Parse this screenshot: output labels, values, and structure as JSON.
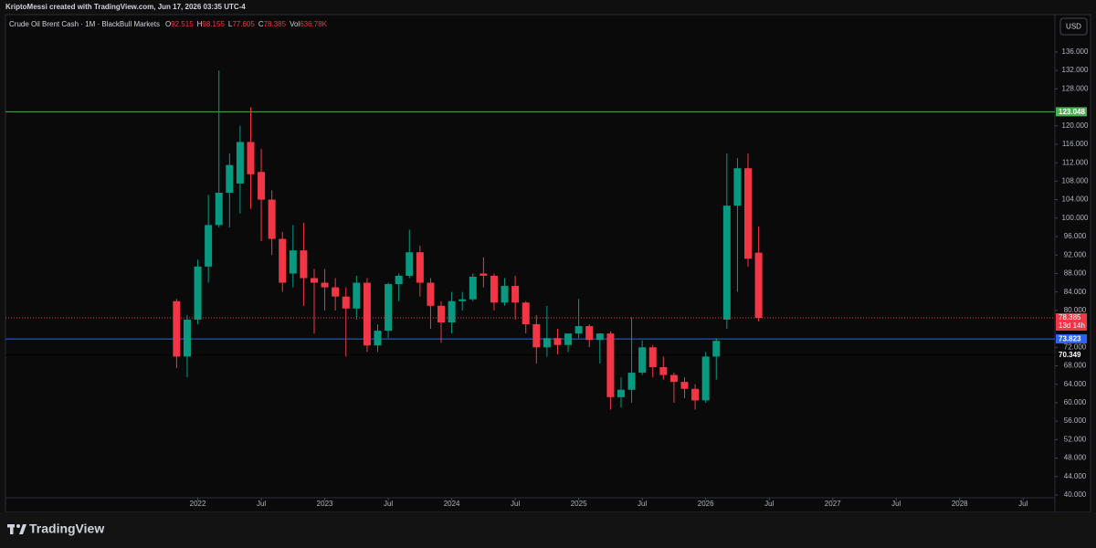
{
  "chart_data": {
    "type": "candlestick",
    "attribution": "KriptoMessi created with TradingView.com, Jun 17, 2026 03:35 UTC-4",
    "title": "Crude Oil Brent Cash · 1M · BlackBull Markets",
    "ohlc_letters": [
      "O",
      "H",
      "L",
      "C"
    ],
    "volume": {
      "label": "Vol",
      "value": "636.78K"
    },
    "currency": "USD",
    "countdown": "13d 14h",
    "brand": "TradingView",
    "up_color": "#089981",
    "down_color": "#f23645",
    "x": [
      "2021-11",
      "2021-12",
      "2022-01",
      "2022-02",
      "2022-03",
      "2022-04",
      "2022-05",
      "2022-06",
      "2022-07",
      "2022-08",
      "2022-09",
      "2022-10",
      "2022-11",
      "2022-12",
      "2023-01",
      "2023-02",
      "2023-03",
      "2023-04",
      "2023-05",
      "2023-06",
      "2023-07",
      "2023-08",
      "2023-09",
      "2023-10",
      "2023-11",
      "2023-12",
      "2024-01",
      "2024-02",
      "2024-03",
      "2024-04",
      "2024-05",
      "2024-06",
      "2024-07",
      "2024-08",
      "2024-09",
      "2024-10",
      "2024-11",
      "2024-12",
      "2025-01",
      "2025-02",
      "2025-03",
      "2025-04",
      "2025-05",
      "2025-06",
      "2025-07",
      "2025-08",
      "2025-09",
      "2025-10",
      "2025-11",
      "2025-12",
      "2026-01",
      "2026-02",
      "2026-03",
      "2026-04",
      "2026-05",
      "2026-06"
    ],
    "open": [
      82,
      70,
      78,
      89.5,
      98.5,
      105.5,
      107.5,
      116.5,
      110,
      104,
      95.5,
      88,
      93,
      87,
      86,
      85,
      83,
      80.4,
      86,
      72.4,
      75.6,
      85.7,
      87.5,
      92.6,
      86,
      81,
      77.4,
      82,
      82.4,
      88,
      87.5,
      81.7,
      85.3,
      81.7,
      77,
      72,
      74,
      72.5,
      75,
      76.6,
      73.6,
      75,
      61.2,
      62.8,
      66.5,
      72,
      67.7,
      66,
      64.5,
      63,
      60.5,
      70,
      78,
      102.7,
      110.8,
      92.515
    ],
    "high": [
      82.5,
      79,
      91,
      105,
      132,
      114,
      120,
      124,
      115,
      106,
      97,
      98.5,
      99,
      89,
      89,
      87,
      85,
      87.5,
      87,
      77,
      86,
      88,
      97.5,
      94,
      87,
      82,
      84,
      84,
      88,
      91.5,
      88,
      87,
      87.5,
      82,
      79,
      81,
      76,
      75,
      82.5,
      77,
      75,
      75.5,
      65.5,
      78.5,
      73.5,
      72.5,
      70,
      66.5,
      65.5,
      64,
      71,
      74,
      114,
      113,
      114,
      98.155
    ],
    "low": [
      67.5,
      65.5,
      77,
      86,
      98,
      98,
      101,
      102,
      95,
      92,
      84,
      85,
      81,
      75,
      80,
      80,
      70,
      78,
      71,
      71,
      74,
      82,
      87,
      83,
      76,
      73,
      75,
      80,
      82,
      85,
      80,
      81,
      78,
      75,
      68.5,
      70,
      70.5,
      71,
      74,
      72,
      68.5,
      58.5,
      59,
      60,
      66,
      65.5,
      65,
      60,
      61,
      58.5,
      60,
      65,
      76,
      84,
      89.5,
      77.605
    ],
    "close": [
      70,
      78,
      89.5,
      98.5,
      105.5,
      111.5,
      116.5,
      109.5,
      104,
      95.5,
      86,
      93,
      87,
      86,
      85,
      83,
      80.4,
      86,
      72.4,
      75.6,
      85.7,
      87.5,
      92.6,
      86,
      81,
      77.4,
      82,
      82.4,
      87.3,
      87.5,
      81.7,
      85.3,
      81.7,
      77,
      72,
      74,
      72.5,
      75,
      76.6,
      73.6,
      75,
      61.2,
      62.8,
      66.5,
      72,
      67.7,
      66,
      64.5,
      63,
      60.5,
      70,
      73.4,
      102.7,
      110.8,
      91.2,
      78.385
    ],
    "xlim": [
      "2020-07",
      "2028-10"
    ],
    "xticks": [
      {
        "value": "2022-01",
        "label": "2022"
      },
      {
        "value": "2022-07",
        "label": "Jul"
      },
      {
        "value": "2023-01",
        "label": "2023"
      },
      {
        "value": "2023-07",
        "label": "Jul"
      },
      {
        "value": "2024-01",
        "label": "2024"
      },
      {
        "value": "2024-07",
        "label": "Jul"
      },
      {
        "value": "2025-01",
        "label": "2025"
      },
      {
        "value": "2025-07",
        "label": "Jul"
      },
      {
        "value": "2026-01",
        "label": "2026"
      },
      {
        "value": "2026-07",
        "label": "Jul"
      },
      {
        "value": "2027-01",
        "label": "2027"
      },
      {
        "value": "2027-07",
        "label": "Jul"
      },
      {
        "value": "2028-01",
        "label": "2028"
      },
      {
        "value": "2028-07",
        "label": "Jul"
      }
    ],
    "ylim": [
      39.4,
      143.7
    ],
    "yticks": [
      {
        "value": 40,
        "label": "40.000"
      },
      {
        "value": 44,
        "label": "44.000"
      },
      {
        "value": 48,
        "label": "48.000"
      },
      {
        "value": 52,
        "label": "52.000"
      },
      {
        "value": 56,
        "label": "56.000"
      },
      {
        "value": 60,
        "label": "60.000"
      },
      {
        "value": 64,
        "label": "64.000"
      },
      {
        "value": 68,
        "label": "68.000"
      },
      {
        "value": 72,
        "label": "72.000"
      },
      {
        "value": 80,
        "label": "80.000"
      },
      {
        "value": 84,
        "label": "84.000"
      },
      {
        "value": 88,
        "label": "88.000"
      },
      {
        "value": 92,
        "label": "92.000"
      },
      {
        "value": 96,
        "label": "96.000"
      },
      {
        "value": 100,
        "label": "100.000"
      },
      {
        "value": 104,
        "label": "104.000"
      },
      {
        "value": 108,
        "label": "108.000"
      },
      {
        "value": 112,
        "label": "112.000"
      },
      {
        "value": 116,
        "label": "116.000"
      },
      {
        "value": 120,
        "label": "120.000"
      },
      {
        "value": 128,
        "label": "128.000"
      },
      {
        "value": 132,
        "label": "132.000"
      },
      {
        "value": 136,
        "label": "136.000"
      }
    ],
    "hlines": [
      {
        "value": 123.048,
        "color": "#4caf50"
      },
      {
        "value": 73.823,
        "color": "#2962ff"
      },
      {
        "value": 70.349,
        "color": "#000000"
      }
    ]
  }
}
